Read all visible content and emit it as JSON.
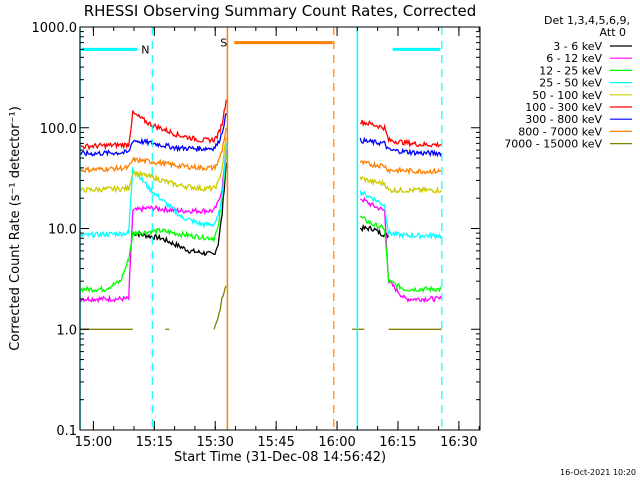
{
  "chart_data": {
    "type": "line",
    "title": "RHESSI Observing Summary Count Rates, Corrected",
    "xlabel": "Start Time (31-Dec-08 14:56:42)",
    "ylabel": "Corrected Count Rate (s⁻¹ detector⁻¹)",
    "yscale": "log",
    "ylim": [
      0.1,
      1000
    ],
    "xlim_minutes_after_start": [
      0,
      98.5
    ],
    "y_ticks": [
      "1000.0",
      "100.0",
      "10.0",
      "1.0",
      "0.1"
    ],
    "x_ticks": [
      {
        "label": "15:00",
        "min": 3.3
      },
      {
        "label": "15:15",
        "min": 18.3
      },
      {
        "label": "15:30",
        "min": 33.3
      },
      {
        "label": "15:45",
        "min": 48.3
      },
      {
        "label": "16:00",
        "min": 63.3
      },
      {
        "label": "16:15",
        "min": 78.3
      },
      {
        "label": "16:30",
        "min": 93.3
      }
    ],
    "legend_header": [
      "Det 1,3,4,5,6,9,",
      "Att 0"
    ],
    "series": [
      {
        "name": "3 - 6 keV",
        "color": "#000000",
        "segments": [
          [
            [
              13,
              9
            ],
            [
              20,
              8
            ],
            [
              27,
              6
            ],
            [
              33,
              5.5
            ],
            [
              34,
              7
            ],
            [
              35,
              14
            ],
            [
              36,
              45
            ]
          ],
          [
            [
              69,
              10
            ],
            [
              72,
              10
            ],
            [
              74,
              9
            ],
            [
              76,
              8.5
            ]
          ]
        ]
      },
      {
        "name": "6 - 12 keV",
        "color": "#ff00ff",
        "segments": [
          [
            [
              0,
              2
            ],
            [
              6,
              2
            ],
            [
              9,
              2
            ],
            [
              12,
              2
            ],
            [
              13,
              15
            ],
            [
              17,
              16
            ],
            [
              25,
              15
            ],
            [
              33,
              15
            ],
            [
              34,
              18
            ],
            [
              35,
              25
            ],
            [
              36,
              60
            ]
          ],
          [
            [
              69,
              20
            ],
            [
              72,
              17
            ],
            [
              75,
              15
            ],
            [
              76,
              3
            ],
            [
              80,
              2
            ],
            [
              84,
              2
            ],
            [
              89,
              2
            ]
          ]
        ]
      },
      {
        "name": "12 - 25 keV",
        "color": "#00ff00",
        "segments": [
          [
            [
              0,
              2.5
            ],
            [
              6,
              2.5
            ],
            [
              10,
              3
            ],
            [
              12,
              5
            ],
            [
              13,
              9
            ],
            [
              20,
              9.5
            ],
            [
              27,
              8.5
            ],
            [
              33,
              8
            ],
            [
              34,
              10
            ],
            [
              35,
              20
            ],
            [
              36,
              55
            ]
          ],
          [
            [
              69,
              13
            ],
            [
              72,
              11
            ],
            [
              75,
              10
            ],
            [
              76,
              3
            ],
            [
              80,
              2.5
            ],
            [
              84,
              2.5
            ],
            [
              89,
              2.5
            ]
          ]
        ]
      },
      {
        "name": "25 - 50 keV",
        "color": "#00ffff",
        "segments": [
          [
            [
              0,
              8.5
            ],
            [
              12,
              9
            ],
            [
              13,
              40
            ],
            [
              17,
              25
            ],
            [
              21,
              18
            ],
            [
              25,
              13
            ],
            [
              30,
              11
            ],
            [
              33,
              11
            ],
            [
              34,
              13
            ],
            [
              35,
              20
            ],
            [
              36,
              70
            ]
          ],
          [
            [
              69,
              23
            ],
            [
              72,
              20
            ],
            [
              75,
              17
            ],
            [
              76,
              9
            ],
            [
              80,
              8.5
            ],
            [
              84,
              8.5
            ],
            [
              89,
              8.5
            ]
          ]
        ]
      },
      {
        "name": "50 - 100 keV",
        "color": "#cccc00",
        "segments": [
          [
            [
              0,
              24
            ],
            [
              12,
              25
            ],
            [
              13,
              36
            ],
            [
              18,
              32
            ],
            [
              24,
              27
            ],
            [
              30,
              25
            ],
            [
              33,
              25
            ],
            [
              34,
              28
            ],
            [
              35,
              40
            ],
            [
              36,
              80
            ]
          ],
          [
            [
              69,
              32
            ],
            [
              72,
              29
            ],
            [
              75,
              28
            ],
            [
              76,
              24
            ],
            [
              84,
              24
            ],
            [
              89,
              24
            ]
          ]
        ]
      },
      {
        "name": "100 - 300 keV",
        "color": "#ff0000",
        "segments": [
          [
            [
              0,
              65
            ],
            [
              12,
              68
            ],
            [
              13,
              140
            ],
            [
              17,
              110
            ],
            [
              24,
              85
            ],
            [
              30,
              75
            ],
            [
              33,
              76
            ],
            [
              34,
              85
            ],
            [
              35,
              110
            ],
            [
              36,
              190
            ]
          ],
          [
            [
              69,
              115
            ],
            [
              72,
              108
            ],
            [
              75,
              100
            ],
            [
              76,
              75
            ],
            [
              84,
              68
            ],
            [
              89,
              68
            ]
          ]
        ]
      },
      {
        "name": "300 - 800 keV",
        "color": "#0000ff",
        "segments": [
          [
            [
              0,
              55
            ],
            [
              12,
              57
            ],
            [
              13,
              75
            ],
            [
              18,
              70
            ],
            [
              24,
              63
            ],
            [
              30,
              62
            ],
            [
              33,
              63
            ],
            [
              34,
              70
            ],
            [
              35,
              90
            ],
            [
              36,
              140
            ]
          ],
          [
            [
              69,
              75
            ],
            [
              72,
              72
            ],
            [
              75,
              70
            ],
            [
              76,
              60
            ],
            [
              84,
              56
            ],
            [
              89,
              56
            ]
          ]
        ]
      },
      {
        "name": "800 - 7000 keV",
        "color": "#ff8000",
        "segments": [
          [
            [
              0,
              38
            ],
            [
              12,
              40
            ],
            [
              13,
              48
            ],
            [
              18,
              46
            ],
            [
              24,
              42
            ],
            [
              30,
              40
            ],
            [
              33,
              40
            ],
            [
              34,
              45
            ],
            [
              35,
              60
            ],
            [
              36,
              100
            ]
          ],
          [
            [
              69,
              45
            ],
            [
              72,
              43
            ],
            [
              75,
              42
            ],
            [
              76,
              38
            ],
            [
              84,
              37
            ],
            [
              89,
              37
            ]
          ]
        ]
      },
      {
        "name": "7000 - 15000 keV",
        "color": "#808000",
        "segments": [
          [
            [
              0,
              1
            ],
            [
              12,
              1
            ],
            [
              13,
              1
            ]
          ],
          [
            [
              21,
              1
            ],
            [
              22,
              1
            ]
          ],
          [
            [
              33,
              1
            ],
            [
              34,
              1.3
            ],
            [
              35,
              2
            ],
            [
              36,
              2.7
            ]
          ],
          [
            [
              67,
              1
            ],
            [
              70,
              1
            ]
          ],
          [
            [
              76,
              1
            ],
            [
              89,
              1
            ]
          ]
        ]
      }
    ],
    "state_bars": [
      {
        "label": "N",
        "color": "#00ffff",
        "y": 600,
        "ranges": [
          [
            0,
            17.8
          ],
          [
            76.5,
            89
          ]
        ]
      },
      {
        "label": "S",
        "color": "#ff8000",
        "y": 700,
        "ranges": [
          [
            37.5,
            62.5
          ]
        ]
      }
    ],
    "solid_markers": [
      {
        "color": "#00ffff",
        "min": 0
      },
      {
        "color": "#ff8000",
        "min": 36.3
      },
      {
        "color": "#00ffff",
        "min": 68.3
      }
    ],
    "dashed_markers": [
      {
        "color": "#00ffff",
        "min": 17.8
      },
      {
        "color": "#ff8000",
        "min": 62.5
      },
      {
        "color": "#00ffff",
        "min": 89.1
      }
    ]
  },
  "footer": {
    "timestamp": "16-Oct-2021 10:20"
  }
}
